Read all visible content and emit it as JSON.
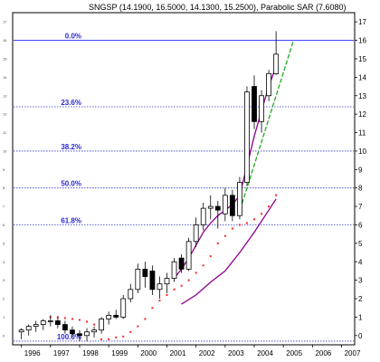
{
  "chart_data": {
    "type": "candlestick",
    "title": "SNGSP (14.1900, 16.5000, 14.1300, 15.2500), Parabolic SAR (7.6080)",
    "ylim": [
      -0.5,
      17.5
    ],
    "y_ticks": [
      0,
      1,
      2,
      3,
      4,
      5,
      6,
      7,
      8,
      9,
      10,
      11,
      12,
      13,
      14,
      15,
      16,
      17
    ],
    "x_ticks": [
      "1996",
      "1997",
      "1998",
      "1999",
      "2000",
      "2001",
      "2002",
      "2003",
      "2004",
      "2005",
      "2006",
      "2007"
    ],
    "fib_levels": [
      {
        "label": "0.0%",
        "value": 16.0,
        "color": "#3333ff"
      },
      {
        "label": "23.6%",
        "value": 12.4
      },
      {
        "label": "38.2%",
        "value": 10.0
      },
      {
        "label": "50.0%",
        "value": 8.0
      },
      {
        "label": "61.8%",
        "value": 6.0
      },
      {
        "label": "100.0%",
        "value": -0.3
      }
    ],
    "candles": [
      {
        "t": 1996.0,
        "o": 0.2,
        "h": 0.4,
        "l": -0.2,
        "c": 0.3
      },
      {
        "t": 1996.25,
        "o": 0.3,
        "h": 0.6,
        "l": 0.0,
        "c": 0.5
      },
      {
        "t": 1996.5,
        "o": 0.5,
        "h": 0.8,
        "l": 0.2,
        "c": 0.6
      },
      {
        "t": 1996.75,
        "o": 0.6,
        "h": 0.9,
        "l": 0.3,
        "c": 0.8
      },
      {
        "t": 1997.0,
        "o": 0.8,
        "h": 1.1,
        "l": 0.5,
        "c": 0.8
      },
      {
        "t": 1997.25,
        "o": 0.8,
        "h": 1.0,
        "l": 0.4,
        "c": 0.6
      },
      {
        "t": 1997.5,
        "o": 0.6,
        "h": 0.8,
        "l": 0.1,
        "c": 0.3
      },
      {
        "t": 1997.75,
        "o": 0.3,
        "h": 0.5,
        "l": -0.1,
        "c": 0.1
      },
      {
        "t": 1998.0,
        "o": 0.1,
        "h": 0.3,
        "l": -0.3,
        "c": 0.0
      },
      {
        "t": 1998.25,
        "o": 0.0,
        "h": 0.4,
        "l": -0.3,
        "c": 0.2
      },
      {
        "t": 1998.5,
        "o": 0.2,
        "h": 0.5,
        "l": -0.1,
        "c": 0.3
      },
      {
        "t": 1998.75,
        "o": 0.3,
        "h": 1.0,
        "l": 0.1,
        "c": 0.9
      },
      {
        "t": 1999.0,
        "o": 0.9,
        "h": 1.3,
        "l": 0.6,
        "c": 1.1
      },
      {
        "t": 1999.25,
        "o": 1.1,
        "h": 1.4,
        "l": 0.9,
        "c": 1.0
      },
      {
        "t": 1999.5,
        "o": 1.0,
        "h": 2.2,
        "l": 0.9,
        "c": 2.0
      },
      {
        "t": 1999.75,
        "o": 2.0,
        "h": 2.8,
        "l": 1.8,
        "c": 2.5
      },
      {
        "t": 2000.0,
        "o": 2.5,
        "h": 3.9,
        "l": 2.3,
        "c": 3.6
      },
      {
        "t": 2000.25,
        "o": 3.6,
        "h": 4.0,
        "l": 2.6,
        "c": 3.2
      },
      {
        "t": 2000.5,
        "o": 3.5,
        "h": 3.8,
        "l": 2.2,
        "c": 2.5
      },
      {
        "t": 2000.75,
        "o": 2.5,
        "h": 3.2,
        "l": 2.0,
        "c": 2.8
      },
      {
        "t": 2001.0,
        "o": 2.8,
        "h": 3.4,
        "l": 2.3,
        "c": 3.1
      },
      {
        "t": 2001.25,
        "o": 3.1,
        "h": 4.2,
        "l": 2.9,
        "c": 4.0
      },
      {
        "t": 2001.5,
        "o": 4.2,
        "h": 4.4,
        "l": 3.4,
        "c": 3.6
      },
      {
        "t": 2001.75,
        "o": 3.6,
        "h": 5.3,
        "l": 3.5,
        "c": 5.1
      },
      {
        "t": 2002.0,
        "o": 5.1,
        "h": 6.4,
        "l": 4.8,
        "c": 6.0
      },
      {
        "t": 2002.25,
        "o": 6.0,
        "h": 7.2,
        "l": 5.7,
        "c": 6.9
      },
      {
        "t": 2002.5,
        "o": 6.9,
        "h": 7.6,
        "l": 6.3,
        "c": 7.0
      },
      {
        "t": 2002.75,
        "o": 7.0,
        "h": 7.3,
        "l": 5.8,
        "c": 6.8
      },
      {
        "t": 2003.0,
        "o": 6.6,
        "h": 8.0,
        "l": 6.2,
        "c": 7.6
      },
      {
        "t": 2003.25,
        "o": 7.6,
        "h": 7.9,
        "l": 6.2,
        "c": 6.5
      },
      {
        "t": 2003.5,
        "o": 6.5,
        "h": 8.6,
        "l": 6.3,
        "c": 8.3
      },
      {
        "t": 2003.75,
        "o": 8.3,
        "h": 13.5,
        "l": 8.1,
        "c": 13.2
      },
      {
        "t": 2004.0,
        "o": 13.5,
        "h": 14.1,
        "l": 11.2,
        "c": 11.6
      },
      {
        "t": 2004.25,
        "o": 11.6,
        "h": 13.3,
        "l": 11.0,
        "c": 13.0
      },
      {
        "t": 2004.5,
        "o": 13.0,
        "h": 14.4,
        "l": 12.7,
        "c": 14.2
      },
      {
        "t": 2004.75,
        "o": 14.19,
        "h": 16.5,
        "l": 14.13,
        "c": 15.25
      }
    ],
    "sar": [
      {
        "t": 1997.0,
        "v": 1.0
      },
      {
        "t": 1997.25,
        "v": 1.0
      },
      {
        "t": 1997.5,
        "v": 0.95
      },
      {
        "t": 1997.75,
        "v": 0.9
      },
      {
        "t": 1998.0,
        "v": 0.85
      },
      {
        "t": 1998.25,
        "v": 0.75
      },
      {
        "t": 1998.5,
        "v": 0.6
      },
      {
        "t": 1998.75,
        "v": -0.2
      },
      {
        "t": 1999.0,
        "v": -0.2
      },
      {
        "t": 1999.25,
        "v": -0.1
      },
      {
        "t": 1999.5,
        "v": -0.05
      },
      {
        "t": 1999.75,
        "v": 0.2
      },
      {
        "t": 2000.0,
        "v": 0.5
      },
      {
        "t": 2000.25,
        "v": 0.9
      },
      {
        "t": 2000.5,
        "v": 1.5
      },
      {
        "t": 2000.75,
        "v": 1.9
      },
      {
        "t": 2001.0,
        "v": 2.2
      },
      {
        "t": 2001.25,
        "v": 2.5
      },
      {
        "t": 2001.5,
        "v": 2.7
      },
      {
        "t": 2001.75,
        "v": 3.0
      },
      {
        "t": 2002.0,
        "v": 3.4
      },
      {
        "t": 2002.25,
        "v": 3.8
      },
      {
        "t": 2002.5,
        "v": 4.3
      },
      {
        "t": 2002.75,
        "v": 5.0
      },
      {
        "t": 2003.0,
        "v": 5.4
      },
      {
        "t": 2003.25,
        "v": 5.8
      },
      {
        "t": 2003.5,
        "v": 6.0
      },
      {
        "t": 2003.75,
        "v": 6.1
      },
      {
        "t": 2004.0,
        "v": 6.3
      },
      {
        "t": 2004.25,
        "v": 6.6
      },
      {
        "t": 2004.5,
        "v": 7.0
      },
      {
        "t": 2004.75,
        "v": 7.608
      }
    ],
    "ma_fast": {
      "color": "#8b008b",
      "points": [
        {
          "t": 2001.25,
          "v": 3.1
        },
        {
          "t": 2001.5,
          "v": 3.6
        },
        {
          "t": 2001.75,
          "v": 4.2
        },
        {
          "t": 2002.0,
          "v": 4.9
        },
        {
          "t": 2002.25,
          "v": 5.6
        },
        {
          "t": 2002.5,
          "v": 6.1
        },
        {
          "t": 2002.75,
          "v": 6.5
        },
        {
          "t": 2003.0,
          "v": 6.8
        },
        {
          "t": 2003.25,
          "v": 7.1
        },
        {
          "t": 2003.5,
          "v": 7.6
        },
        {
          "t": 2003.75,
          "v": 9.2
        },
        {
          "t": 2004.0,
          "v": 10.8
        },
        {
          "t": 2004.25,
          "v": 12.2
        },
        {
          "t": 2004.5,
          "v": 13.5
        },
        {
          "t": 2004.75,
          "v": 14.6
        }
      ]
    },
    "ma_slow": {
      "color": "#8b008b",
      "points": [
        {
          "t": 2001.5,
          "v": 1.7
        },
        {
          "t": 2002.0,
          "v": 2.2
        },
        {
          "t": 2002.5,
          "v": 2.9
        },
        {
          "t": 2003.0,
          "v": 3.5
        },
        {
          "t": 2003.5,
          "v": 4.5
        },
        {
          "t": 2004.0,
          "v": 5.6
        },
        {
          "t": 2004.5,
          "v": 6.8
        },
        {
          "t": 2004.75,
          "v": 7.4
        }
      ]
    },
    "trendline": {
      "color": "#22aa22",
      "from": {
        "t": 2003.45,
        "v": 6.5
      },
      "to": {
        "t": 2005.35,
        "v": 16.0
      }
    },
    "colors": {
      "fib_dotted": "#3333cc",
      "fib_top": "#3333ff",
      "sar": "#ff2222",
      "candle_up": "#ffffff",
      "candle_down": "#000000"
    }
  }
}
